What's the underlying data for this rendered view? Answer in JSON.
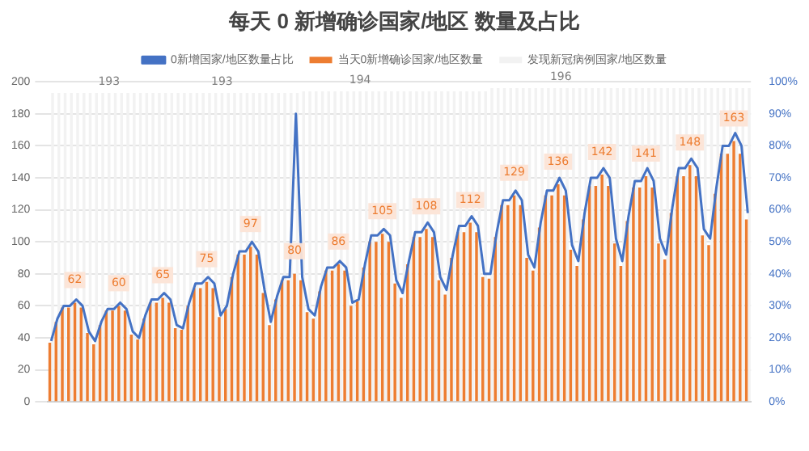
{
  "chart_data": {
    "type": "bar",
    "title": "每天 0 新增确诊国家/地区 数量及占比",
    "categories": [
      null,
      null,
      null,
      null,
      null,
      null,
      null,
      null,
      null,
      null,
      null,
      null,
      null,
      null,
      null,
      null,
      null,
      null,
      null,
      null,
      null,
      null,
      null,
      null,
      null,
      null,
      null,
      null,
      null,
      null,
      null,
      null,
      null,
      null,
      null,
      null,
      null,
      null,
      null,
      null,
      null,
      null,
      null,
      null,
      null,
      null,
      null,
      null,
      null,
      null,
      null,
      null,
      null,
      null,
      null,
      null,
      null,
      null,
      null,
      null,
      null,
      null,
      null,
      null,
      null,
      null,
      null,
      null,
      null,
      null,
      null,
      null,
      null,
      null,
      null,
      null,
      null,
      null,
      null,
      null,
      null,
      null,
      null,
      null,
      null,
      null,
      null,
      null,
      null,
      null,
      null,
      null,
      null,
      null,
      null,
      null,
      null,
      null,
      null,
      null,
      null,
      null,
      null,
      null,
      null,
      null,
      null,
      null,
      null,
      null,
      null,
      null
    ],
    "series": [
      {
        "name": "发现新冠病例国家/地区数量",
        "color": "#f2f2f2",
        "values": [
          193,
          193,
          193,
          193,
          193,
          193,
          193,
          193,
          193,
          193,
          193,
          193,
          193,
          193,
          193,
          193,
          193,
          193,
          193,
          193,
          193,
          193,
          193,
          193,
          193,
          193,
          193,
          193,
          193,
          193,
          193,
          193,
          193,
          193,
          193,
          193,
          193,
          193,
          193,
          193,
          194,
          194,
          194,
          194,
          194,
          194,
          194,
          194,
          194,
          194,
          194,
          194,
          194,
          194,
          194,
          194,
          194,
          194,
          194,
          194,
          194,
          194,
          194,
          194,
          194,
          194,
          194,
          194,
          194,
          194,
          196,
          196,
          196,
          196,
          196,
          196,
          196,
          196,
          196,
          196,
          196,
          196,
          196,
          196,
          196,
          196,
          196,
          196,
          196,
          196,
          196,
          196,
          196,
          196,
          196,
          196,
          196,
          196,
          196,
          196,
          196,
          196,
          196,
          196,
          196,
          196,
          196,
          196,
          196,
          196,
          196,
          196
        ],
        "value_labels": [
          null,
          null,
          null,
          null,
          null,
          null,
          null,
          null,
          null,
          "193",
          null,
          null,
          null,
          null,
          null,
          null,
          null,
          null,
          null,
          null,
          null,
          null,
          null,
          null,
          null,
          null,
          null,
          "193",
          null,
          null,
          null,
          null,
          null,
          null,
          null,
          null,
          null,
          null,
          null,
          null,
          null,
          null,
          null,
          null,
          null,
          null,
          null,
          null,
          null,
          "194",
          null,
          null,
          null,
          null,
          null,
          null,
          null,
          null,
          null,
          null,
          null,
          null,
          null,
          null,
          null,
          null,
          null,
          null,
          null,
          null,
          null,
          null,
          null,
          null,
          null,
          null,
          null,
          null,
          null,
          null,
          null,
          "196",
          null,
          null,
          null,
          null,
          null,
          null,
          null,
          null,
          null,
          null,
          null,
          null,
          null,
          null,
          null,
          null,
          null,
          null,
          null,
          null,
          null,
          null,
          null,
          null,
          null,
          null,
          null,
          null,
          null,
          null
        ]
      },
      {
        "name": "当天0新增确诊国家/地区数量",
        "color": "#ed7d31",
        "values": [
          37,
          50,
          59,
          59,
          62,
          59,
          43,
          36,
          48,
          57,
          57,
          60,
          57,
          42,
          39,
          52,
          62,
          62,
          65,
          62,
          46,
          45,
          60,
          71,
          71,
          75,
          71,
          53,
          58,
          78,
          92,
          92,
          97,
          92,
          68,
          48,
          64,
          76,
          76,
          80,
          76,
          56,
          52,
          69,
          82,
          82,
          86,
          82,
          60,
          63,
          84,
          100,
          100,
          105,
          100,
          74,
          65,
          86,
          103,
          103,
          108,
          103,
          76,
          67,
          90,
          106,
          106,
          112,
          106,
          78,
          77,
          103,
          123,
          123,
          129,
          123,
          90,
          82,
          109,
          129,
          129,
          136,
          129,
          95,
          85,
          114,
          135,
          135,
          142,
          135,
          99,
          85,
          113,
          134,
          134,
          141,
          134,
          99,
          89,
          118,
          141,
          141,
          148,
          141,
          104,
          98,
          130,
          155,
          155,
          163,
          155,
          114
        ],
        "value_labels": [
          null,
          null,
          null,
          null,
          "62",
          null,
          null,
          null,
          null,
          null,
          null,
          "60",
          null,
          null,
          null,
          null,
          null,
          null,
          "65",
          null,
          null,
          null,
          null,
          null,
          null,
          "75",
          null,
          null,
          null,
          null,
          null,
          null,
          "97",
          null,
          null,
          null,
          null,
          null,
          null,
          "80",
          null,
          null,
          null,
          null,
          null,
          null,
          "86",
          null,
          null,
          null,
          null,
          null,
          null,
          "105",
          null,
          null,
          null,
          null,
          null,
          null,
          "108",
          null,
          null,
          null,
          null,
          null,
          null,
          "112",
          null,
          null,
          null,
          null,
          null,
          null,
          "129",
          null,
          null,
          null,
          null,
          null,
          null,
          "136",
          null,
          null,
          null,
          null,
          null,
          null,
          "142",
          null,
          null,
          null,
          null,
          null,
          null,
          "141",
          null,
          null,
          null,
          null,
          null,
          null,
          "148",
          null,
          null,
          null,
          null,
          null,
          null,
          "163",
          null,
          null
        ]
      },
      {
        "name": "0新增国家/地区数量占比",
        "type": "line",
        "axis": "y2",
        "color": "#4472c4",
        "values": [
          19,
          26,
          30,
          30,
          32,
          30,
          22,
          19,
          25,
          29,
          29,
          31,
          29,
          22,
          20,
          27,
          32,
          32,
          34,
          32,
          24,
          23,
          31,
          37,
          37,
          39,
          37,
          27,
          30,
          40,
          47,
          47,
          50,
          47,
          35,
          25,
          33,
          39,
          39,
          90,
          39,
          29,
          27,
          36,
          42,
          42,
          44,
          42,
          31,
          32,
          43,
          52,
          52,
          54,
          52,
          38,
          34,
          44,
          53,
          53,
          56,
          53,
          39,
          35,
          46,
          55,
          55,
          58,
          55,
          40,
          40,
          53,
          63,
          63,
          66,
          63,
          46,
          42,
          56,
          66,
          66,
          70,
          66,
          49,
          44,
          59,
          70,
          70,
          73,
          70,
          51,
          44,
          58,
          69,
          69,
          73,
          69,
          51,
          46,
          61,
          73,
          73,
          76,
          73,
          54,
          51,
          67,
          80,
          80,
          84,
          80,
          59
        ]
      }
    ],
    "ylim": [
      0,
      200
    ],
    "yticks": [
      0,
      20,
      40,
      60,
      80,
      100,
      120,
      140,
      160,
      180,
      200
    ],
    "y2lim": [
      0,
      100
    ],
    "y2ticks": [
      {
        "value": 0,
        "label": "0%"
      },
      {
        "value": 10,
        "label": "10%"
      },
      {
        "value": 20,
        "label": "20%"
      },
      {
        "value": 30,
        "label": "30%"
      },
      {
        "value": 40,
        "label": "40%"
      },
      {
        "value": 50,
        "label": "50%"
      },
      {
        "value": 60,
        "label": "60%"
      },
      {
        "value": 70,
        "label": "70%"
      },
      {
        "value": 80,
        "label": "80%"
      },
      {
        "value": 90,
        "label": "90%"
      },
      {
        "value": 100,
        "label": "100%"
      }
    ],
    "grid": "y",
    "legend": "top",
    "marker": "none"
  }
}
